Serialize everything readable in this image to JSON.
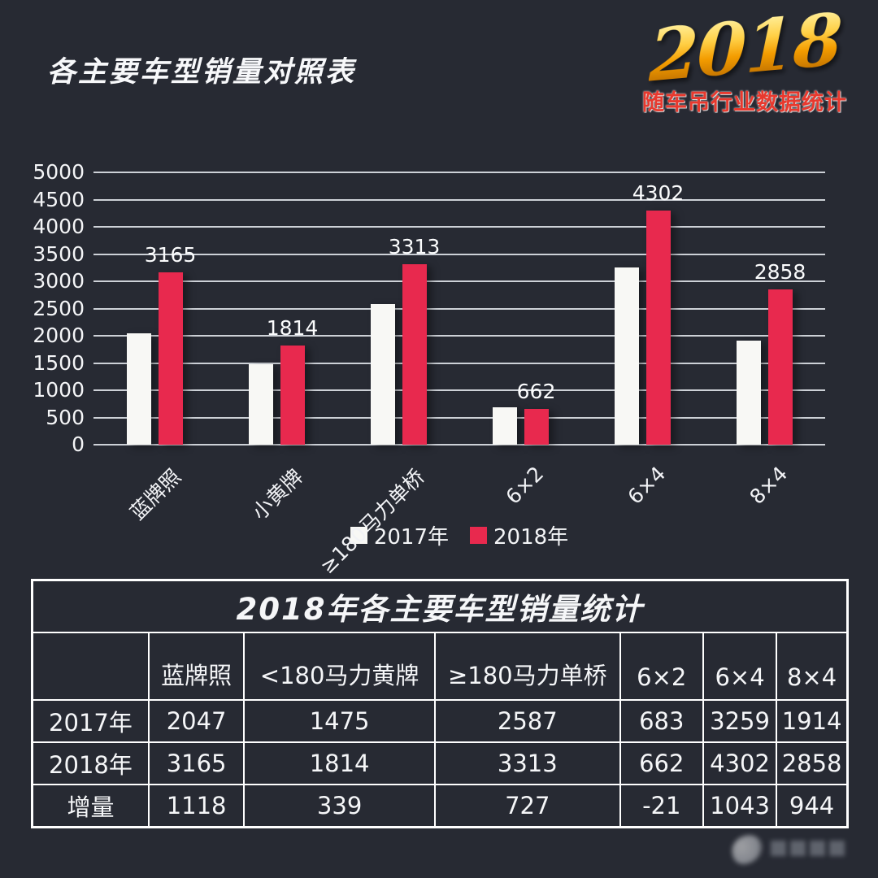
{
  "page": {
    "title": "各主要车型销量对照表"
  },
  "logo": {
    "year": "2018",
    "subtitle": "随车吊行业数据统计",
    "year_color": "#f5a623",
    "subtitle_color": "#e8392e"
  },
  "colors": {
    "background": "#272a33",
    "bar_2017": "#f8f8f5",
    "bar_2018": "#e8294e",
    "gridline": "#e5e8ee",
    "text": "#f5f6f8"
  },
  "chart_data": {
    "type": "bar",
    "categories": [
      "蓝牌照",
      "小黄牌",
      "≥180马力单桥",
      "6×2",
      "6×4",
      "8×4"
    ],
    "series": [
      {
        "name": "2017年",
        "color": "#f8f8f5",
        "values": [
          2047,
          1475,
          2587,
          683,
          3259,
          1914
        ],
        "labels_shown": false
      },
      {
        "name": "2018年",
        "color": "#e8294e",
        "values": [
          3165,
          1814,
          3313,
          662,
          4302,
          2858
        ],
        "labels_shown": true
      }
    ],
    "title": "",
    "xlabel": "",
    "ylabel": "",
    "ylim": [
      0,
      5000
    ],
    "ytick_step": 500,
    "grid": true,
    "legend_position": "bottom-center"
  },
  "table": {
    "title": "2018年各主要车型销量统计",
    "headers": [
      "",
      "蓝牌照",
      "<180马力黄牌",
      "≥180马力单桥",
      "6×2",
      "6×4",
      "8×4"
    ],
    "rows": [
      {
        "label": "2017年",
        "values": [
          "2047",
          "1475",
          "2587",
          "683",
          "3259",
          "1914"
        ]
      },
      {
        "label": "2018年",
        "values": [
          "3165",
          "1814",
          "3313",
          "662",
          "4302",
          "2858"
        ]
      },
      {
        "label": "增量",
        "values": [
          "1118",
          "339",
          "727",
          "-21",
          "1043",
          "944"
        ]
      }
    ]
  }
}
